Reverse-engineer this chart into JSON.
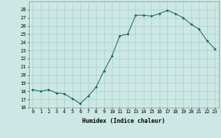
{
  "x": [
    0,
    1,
    2,
    3,
    4,
    5,
    6,
    7,
    8,
    9,
    10,
    11,
    12,
    13,
    14,
    15,
    16,
    17,
    18,
    19,
    20,
    21,
    22,
    23
  ],
  "y": [
    18.2,
    18.0,
    18.2,
    17.8,
    17.7,
    17.1,
    16.5,
    17.4,
    18.5,
    20.5,
    22.3,
    24.8,
    25.0,
    27.3,
    27.3,
    27.2,
    27.5,
    27.9,
    27.5,
    27.0,
    26.2,
    25.6,
    24.2,
    23.2
  ],
  "line_color": "#1a6b5e",
  "marker": "D",
  "marker_size": 1.8,
  "bg_color": "#cce8e4",
  "grid_color": "#aaccc8",
  "xlabel": "Humidex (Indice chaleur)",
  "xlim": [
    -0.5,
    23.5
  ],
  "ylim": [
    16,
    29
  ],
  "yticks": [
    16,
    17,
    18,
    19,
    20,
    21,
    22,
    23,
    24,
    25,
    26,
    27,
    28
  ],
  "xticks": [
    0,
    1,
    2,
    3,
    4,
    5,
    6,
    7,
    8,
    9,
    10,
    11,
    12,
    13,
    14,
    15,
    16,
    17,
    18,
    19,
    20,
    21,
    22,
    23
  ],
  "tick_fontsize": 5.0,
  "label_fontsize": 6.0
}
